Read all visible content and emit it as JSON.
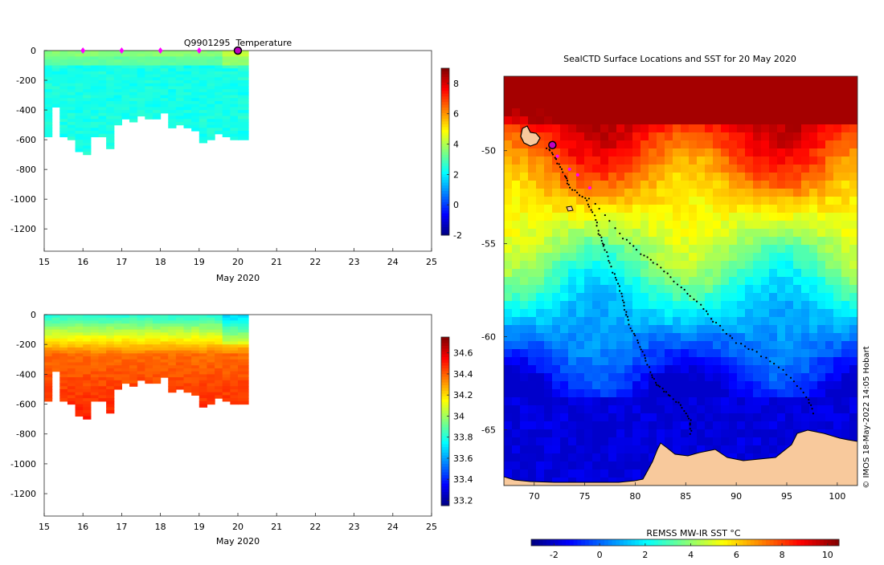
{
  "chart_data": [
    {
      "type": "heatmap",
      "id": "temp-profile",
      "title": "Q9901295  Temperature",
      "xlabel": "May 2020",
      "ylabel": "",
      "xlim": [
        15,
        25
      ],
      "ylim": [
        -1350,
        0
      ],
      "xticks": [
        "15",
        "16",
        "17",
        "18",
        "19",
        "20",
        "21",
        "22",
        "23",
        "24",
        "25"
      ],
      "yticks": [
        "0",
        "-200",
        "-400",
        "-600",
        "-800",
        "-1000",
        "-1200"
      ],
      "colorbar": {
        "ticks": [
          "-2",
          "0",
          "2",
          "4",
          "6",
          "8"
        ],
        "range": [
          -2,
          9
        ]
      },
      "profile_times": [
        15.0,
        15.2,
        15.4,
        15.6,
        15.8,
        16.0,
        16.2,
        16.4,
        16.6,
        16.8,
        17.0,
        17.2,
        17.4,
        17.6,
        17.8,
        18.0,
        18.2,
        18.4,
        18.6,
        18.8,
        19.0,
        19.2,
        19.4,
        19.6,
        19.8,
        20.0
      ],
      "profile_depths": [
        -580,
        -380,
        -580,
        -600,
        -680,
        -690,
        -580,
        -580,
        -650,
        -500,
        -460,
        -480,
        -440,
        -450,
        -450,
        -420,
        -510,
        -500,
        -520,
        -530,
        -620,
        -590,
        -560,
        -570,
        -600,
        -600
      ],
      "surface_markers": [
        16,
        17,
        18,
        19
      ],
      "current_marker": 20
    },
    {
      "type": "heatmap",
      "id": "salinity-profile",
      "title": "",
      "xlabel": "May 2020",
      "ylabel": "",
      "xlim": [
        15,
        25
      ],
      "ylim": [
        -1350,
        0
      ],
      "xticks": [
        "15",
        "16",
        "17",
        "18",
        "19",
        "20",
        "21",
        "22",
        "23",
        "24",
        "25"
      ],
      "yticks": [
        "0",
        "-200",
        "-400",
        "-600",
        "-800",
        "-1000",
        "-1200"
      ],
      "colorbar": {
        "ticks": [
          "33.2",
          "33.4",
          "33.6",
          "33.8",
          "34",
          "34.2",
          "34.4",
          "34.6"
        ],
        "range": [
          33.15,
          34.75
        ]
      },
      "profile_times": [
        15.0,
        15.2,
        15.4,
        15.6,
        15.8,
        16.0,
        16.2,
        16.4,
        16.6,
        16.8,
        17.0,
        17.2,
        17.4,
        17.6,
        17.8,
        18.0,
        18.2,
        18.4,
        18.6,
        18.8,
        19.0,
        19.2,
        19.4,
        19.6,
        19.8,
        20.0
      ],
      "profile_depths": [
        -580,
        -380,
        -580,
        -600,
        -680,
        -690,
        -580,
        -580,
        -650,
        -500,
        -460,
        -480,
        -440,
        -450,
        -450,
        -420,
        -510,
        -500,
        -520,
        -530,
        -620,
        -590,
        -560,
        -570,
        -600,
        -600
      ]
    },
    {
      "type": "heatmap",
      "id": "sst-map",
      "title": "SealCTD Surface Locations and SST for 20 May 2020",
      "xlim": [
        67,
        102
      ],
      "ylim": [
        -68,
        -46
      ],
      "xticks": [
        "70",
        "75",
        "80",
        "85",
        "90",
        "95",
        "100"
      ],
      "yticks": [
        "-50",
        "-55",
        "-60",
        "-65"
      ],
      "colorbar": {
        "label": "REMSS MW-IR SST °C",
        "ticks": [
          "-2",
          "0",
          "2",
          "4",
          "6",
          "8",
          "10"
        ],
        "range": [
          -3,
          10.5
        ]
      },
      "track": [
        [
          71.3,
          -49.8
        ],
        [
          72.2,
          -50.5
        ],
        [
          73.0,
          -51.3
        ],
        [
          73.5,
          -52.0
        ],
        [
          75.0,
          -52.5
        ],
        [
          76.0,
          -53.5
        ],
        [
          76.5,
          -54.6
        ],
        [
          77.0,
          -55.3
        ],
        [
          77.8,
          -56.5
        ],
        [
          78.5,
          -57.5
        ],
        [
          79.0,
          -58.5
        ],
        [
          79.5,
          -59.5
        ],
        [
          80.5,
          -60.5
        ],
        [
          81.2,
          -61.5
        ],
        [
          82.0,
          -62.5
        ],
        [
          83.0,
          -63.0
        ],
        [
          84.5,
          -63.7
        ],
        [
          85.5,
          -64.5
        ],
        [
          85.5,
          -65.3
        ]
      ],
      "track2": [
        [
          75.5,
          -52.5
        ],
        [
          78.5,
          -54.5
        ],
        [
          80.5,
          -55.5
        ],
        [
          82.5,
          -56.3
        ],
        [
          84.5,
          -57.3
        ],
        [
          86.5,
          -58.3
        ],
        [
          88.0,
          -59.3
        ],
        [
          90.0,
          -60.3
        ],
        [
          92.5,
          -61.0
        ],
        [
          95.0,
          -62.0
        ],
        [
          97.0,
          -63.2
        ],
        [
          97.8,
          -64.3
        ]
      ],
      "markers": [
        [
          72.3,
          -50.3
        ],
        [
          73.5,
          -51.0
        ],
        [
          74.3,
          -51.3
        ],
        [
          75.5,
          -52.0
        ]
      ],
      "current_location": [
        71.8,
        -49.7
      ],
      "watermark": "© IMOS 18-May-2022 14:05 Hobart"
    }
  ]
}
